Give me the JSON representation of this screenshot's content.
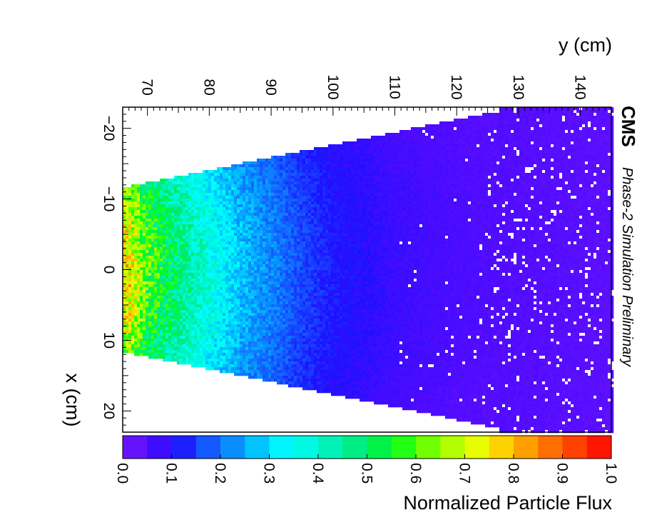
{
  "chart_data": {
    "type": "heatmap",
    "title": "",
    "xlabel": "x (cm)",
    "ylabel": "y (cm)",
    "colorbar_label": "Normalized Particle Flux",
    "experiment_label": "CMS",
    "experiment_sublabel": "Phase-2 Simulation Preliminary",
    "x_range": [
      -23,
      23
    ],
    "y_range": [
      66,
      145
    ],
    "z_range": [
      0.0,
      1.0
    ],
    "x_ticks": [
      "−20",
      "−10",
      "0",
      "10",
      "20"
    ],
    "x_tick_values": [
      -20,
      -10,
      0,
      10,
      20
    ],
    "y_ticks": [
      "70",
      "80",
      "90",
      "100",
      "110",
      "120",
      "130",
      "140"
    ],
    "y_tick_values": [
      70,
      80,
      90,
      100,
      110,
      120,
      130,
      140
    ],
    "colorbar_ticks": [
      "0.0",
      "0.1",
      "0.2",
      "0.3",
      "0.4",
      "0.5",
      "0.6",
      "0.7",
      "0.8",
      "0.9",
      "1.0"
    ],
    "colorbar_tick_values": [
      0,
      0.1,
      0.2,
      0.3,
      0.4,
      0.5,
      0.6,
      0.7,
      0.8,
      0.9,
      1.0
    ],
    "colormap": [
      "#7a18ff",
      "#4f0bff",
      "#1e10ff",
      "#1550ff",
      "#0a8bff",
      "#00c6ff",
      "#00ffff",
      "#00f7d8",
      "#00f0a8",
      "#00e868",
      "#00ff1e",
      "#5cff00",
      "#a8ff00",
      "#e6ff00",
      "#ffd000",
      "#ff9800",
      "#ff6000",
      "#ff3000",
      "#ff0000"
    ],
    "coverage_region": {
      "description_y_at": [
        67,
        127
      ],
      "half_width_x_at_inner": 11.8,
      "half_width_x_at_outer": 22.5
    },
    "flux_profile": {
      "y": [
        67,
        70,
        75,
        80,
        85,
        90,
        95,
        100,
        110,
        120,
        130,
        145
      ],
      "value": [
        0.75,
        0.6,
        0.48,
        0.38,
        0.28,
        0.22,
        0.16,
        0.12,
        0.08,
        0.06,
        0.05,
        0.04
      ]
    },
    "grid": false
  }
}
